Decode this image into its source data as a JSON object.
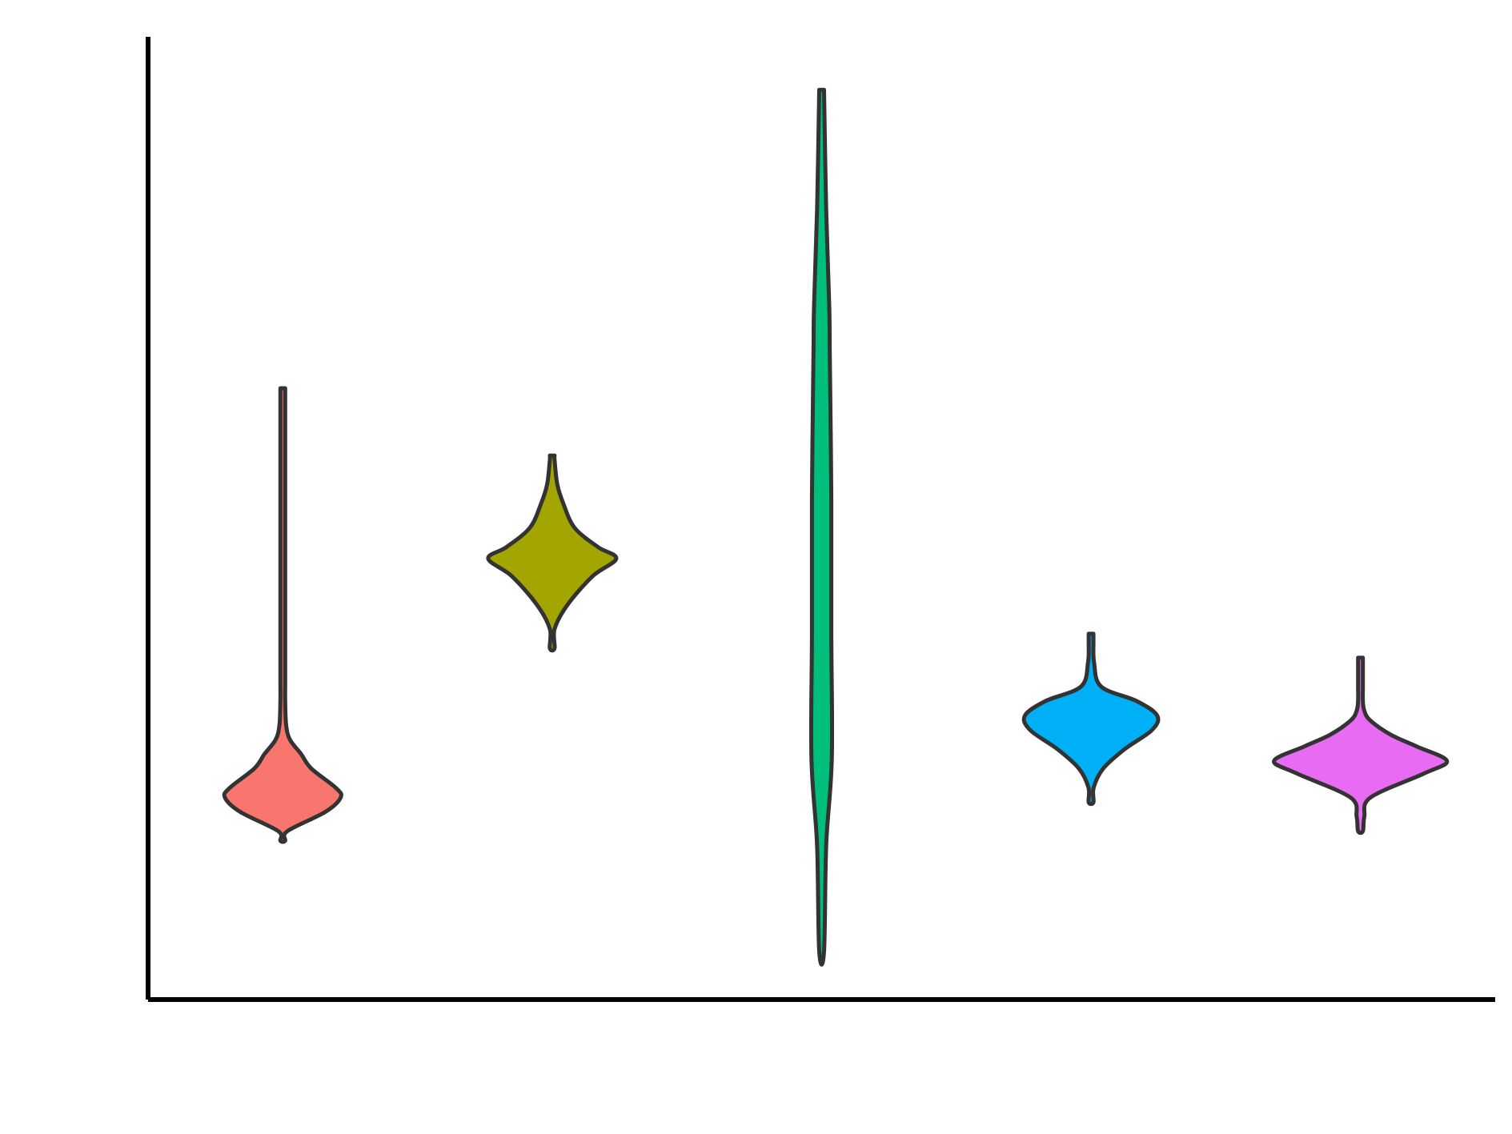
{
  "chart_data": {
    "type": "violin",
    "title": "",
    "xlabel": "",
    "ylabel": "",
    "ylim": [
      0,
      100
    ],
    "grid": false,
    "legend": "none",
    "series": [
      {
        "color": "#F8766D",
        "profile": [
          [
            16.5,
            0.3
          ],
          [
            17.5,
            4.6
          ],
          [
            19.5,
            42
          ],
          [
            21,
            57
          ],
          [
            22,
            52
          ],
          [
            24,
            28
          ],
          [
            25.5,
            18
          ],
          [
            27,
            7
          ],
          [
            28.5,
            3.3
          ],
          [
            31,
            1.8
          ],
          [
            33,
            1.1
          ],
          [
            36,
            1.0
          ],
          [
            40,
            0.9
          ],
          [
            45,
            0.8
          ],
          [
            52,
            0.7
          ],
          [
            58,
            0.65
          ],
          [
            63.5,
            0.3
          ]
        ]
      },
      {
        "color": "#A3A500",
        "profile": [
          [
            36.5,
            0.3
          ],
          [
            38.5,
            2.0
          ],
          [
            41,
            15
          ],
          [
            44,
            40
          ],
          [
            45.8,
            63
          ],
          [
            47,
            45
          ],
          [
            49,
            22
          ],
          [
            51.5,
            11
          ],
          [
            53.5,
            5
          ],
          [
            56,
            1.5
          ],
          [
            56.5,
            0.3
          ]
        ]
      },
      {
        "color": "#00BF7D",
        "profile": [
          [
            5,
            0.3
          ],
          [
            16,
            4.5
          ],
          [
            25,
            10
          ],
          [
            38,
            9.5
          ],
          [
            52,
            9.5
          ],
          [
            67,
            8
          ],
          [
            72,
            7.5
          ],
          [
            82,
            4.5
          ],
          [
            94.5,
            0.3
          ]
        ]
      },
      {
        "color": "#00B0F6",
        "profile": [
          [
            20.5,
            0.3
          ],
          [
            22,
            2.5
          ],
          [
            24,
            12
          ],
          [
            26,
            33
          ],
          [
            28,
            60
          ],
          [
            29.5,
            65
          ],
          [
            31,
            45
          ],
          [
            32.5,
            10
          ],
          [
            35,
            3
          ],
          [
            37,
            1.4
          ],
          [
            38,
            0.3
          ]
        ]
      },
      {
        "color": "#E76BF3",
        "profile": [
          [
            17.5,
            0.3
          ],
          [
            19,
            3.8
          ],
          [
            21,
            10
          ],
          [
            23.5,
            63
          ],
          [
            24.8,
            85
          ],
          [
            26.3,
            55
          ],
          [
            27.5,
            30
          ],
          [
            29,
            9.5
          ],
          [
            30,
            3.8
          ],
          [
            31,
            1.8
          ],
          [
            32.5,
            1.2
          ],
          [
            34,
            0.8
          ],
          [
            35.5,
            0.3
          ]
        ]
      }
    ]
  }
}
